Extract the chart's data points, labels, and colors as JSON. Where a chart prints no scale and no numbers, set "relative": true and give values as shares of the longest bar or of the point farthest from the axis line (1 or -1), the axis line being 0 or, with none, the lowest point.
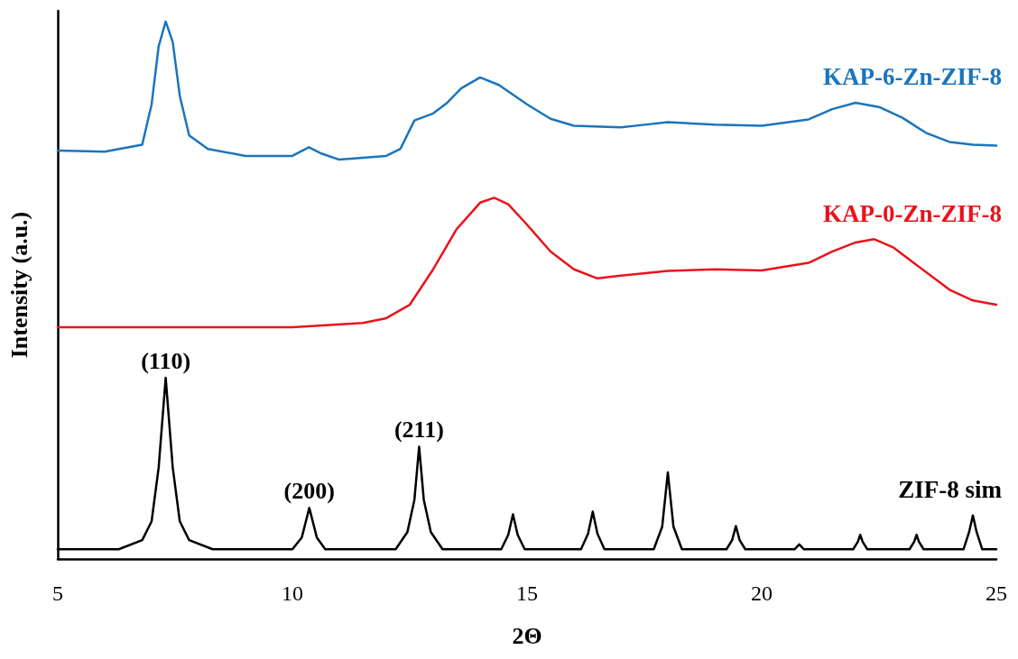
{
  "chart_data": {
    "type": "line",
    "relative": true,
    "xlabel": "2Θ",
    "ylabel": "Intensity (a.u.)",
    "xlim": [
      5,
      25
    ],
    "xticks": [
      5,
      10,
      15,
      20,
      25
    ],
    "grid": false,
    "legend": false,
    "marker": "none",
    "line_style": "solid",
    "series": [
      {
        "name": "KAP-6-Zn-ZIF-8",
        "color": "#1a75bc",
        "x": [
          5,
          6,
          6.8,
          7,
          7.15,
          7.3,
          7.45,
          7.6,
          7.8,
          8.2,
          9,
          10,
          10.35,
          10.6,
          11,
          12,
          12.3,
          12.6,
          13,
          13.3,
          13.6,
          14,
          14.4,
          15,
          15.5,
          16,
          17,
          17.5,
          18,
          19,
          20,
          21,
          21.5,
          22,
          22.5,
          23,
          23.5,
          24,
          24.5,
          25
        ],
        "values": [
          0.76,
          0.758,
          0.771,
          0.846,
          0.954,
          1,
          0.962,
          0.862,
          0.788,
          0.763,
          0.75,
          0.75,
          0.766,
          0.755,
          0.743,
          0.75,
          0.763,
          0.816,
          0.829,
          0.849,
          0.876,
          0.896,
          0.882,
          0.846,
          0.819,
          0.806,
          0.803,
          0.808,
          0.813,
          0.808,
          0.806,
          0.818,
          0.837,
          0.849,
          0.841,
          0.821,
          0.793,
          0.776,
          0.771,
          0.769
        ]
      },
      {
        "name": "KAP-0-Zn-ZIF-8",
        "color": "#e8141b",
        "x": [
          5,
          8,
          10,
          11.5,
          12,
          12.5,
          13,
          13.5,
          14,
          14.3,
          14.6,
          15,
          15.5,
          16,
          16.5,
          17,
          18,
          19,
          20,
          21,
          21.5,
          22,
          22.4,
          22.8,
          23.3,
          24,
          24.5,
          25
        ],
        "values": [
          0.431,
          0.431,
          0.431,
          0.439,
          0.448,
          0.473,
          0.539,
          0.614,
          0.663,
          0.672,
          0.66,
          0.622,
          0.572,
          0.539,
          0.522,
          0.527,
          0.536,
          0.539,
          0.537,
          0.551,
          0.572,
          0.589,
          0.595,
          0.58,
          0.547,
          0.501,
          0.481,
          0.473
        ]
      },
      {
        "name": "ZIF-8 sim",
        "color": "#000000",
        "x": [
          5,
          6.3,
          6.8,
          7,
          7.15,
          7.3,
          7.45,
          7.6,
          7.8,
          8.3,
          10,
          10.2,
          10.36,
          10.52,
          10.7,
          12.2,
          12.45,
          12.6,
          12.7,
          12.8,
          12.95,
          13.2,
          14.45,
          14.6,
          14.7,
          14.8,
          14.95,
          16.15,
          16.3,
          16.4,
          16.5,
          16.65,
          17.7,
          17.88,
          18,
          18.12,
          18.3,
          19.25,
          19.37,
          19.45,
          19.53,
          19.65,
          20.7,
          20.8,
          20.9,
          21.95,
          22.05,
          22.1,
          22.15,
          22.25,
          23.15,
          23.25,
          23.3,
          23.35,
          23.45,
          24.3,
          24.42,
          24.5,
          24.58,
          24.7,
          25
        ],
        "values": [
          0.018,
          0.018,
          0.035,
          0.07,
          0.17,
          0.337,
          0.17,
          0.07,
          0.035,
          0.018,
          0.018,
          0.04,
          0.095,
          0.04,
          0.018,
          0.018,
          0.05,
          0.11,
          0.209,
          0.11,
          0.05,
          0.018,
          0.018,
          0.045,
          0.083,
          0.045,
          0.018,
          0.018,
          0.047,
          0.088,
          0.047,
          0.018,
          0.018,
          0.06,
          0.161,
          0.06,
          0.018,
          0.018,
          0.035,
          0.061,
          0.035,
          0.018,
          0.018,
          0.027,
          0.018,
          0.018,
          0.032,
          0.045,
          0.032,
          0.018,
          0.018,
          0.032,
          0.045,
          0.032,
          0.018,
          0.018,
          0.05,
          0.081,
          0.05,
          0.018,
          0.018
        ]
      }
    ],
    "annotations": [
      {
        "text": "(110)",
        "x": 7.3,
        "y": 0.337
      },
      {
        "text": "(200)",
        "x": 10.36,
        "y": 0.095
      },
      {
        "text": "(211)",
        "x": 12.7,
        "y": 0.209
      }
    ]
  }
}
